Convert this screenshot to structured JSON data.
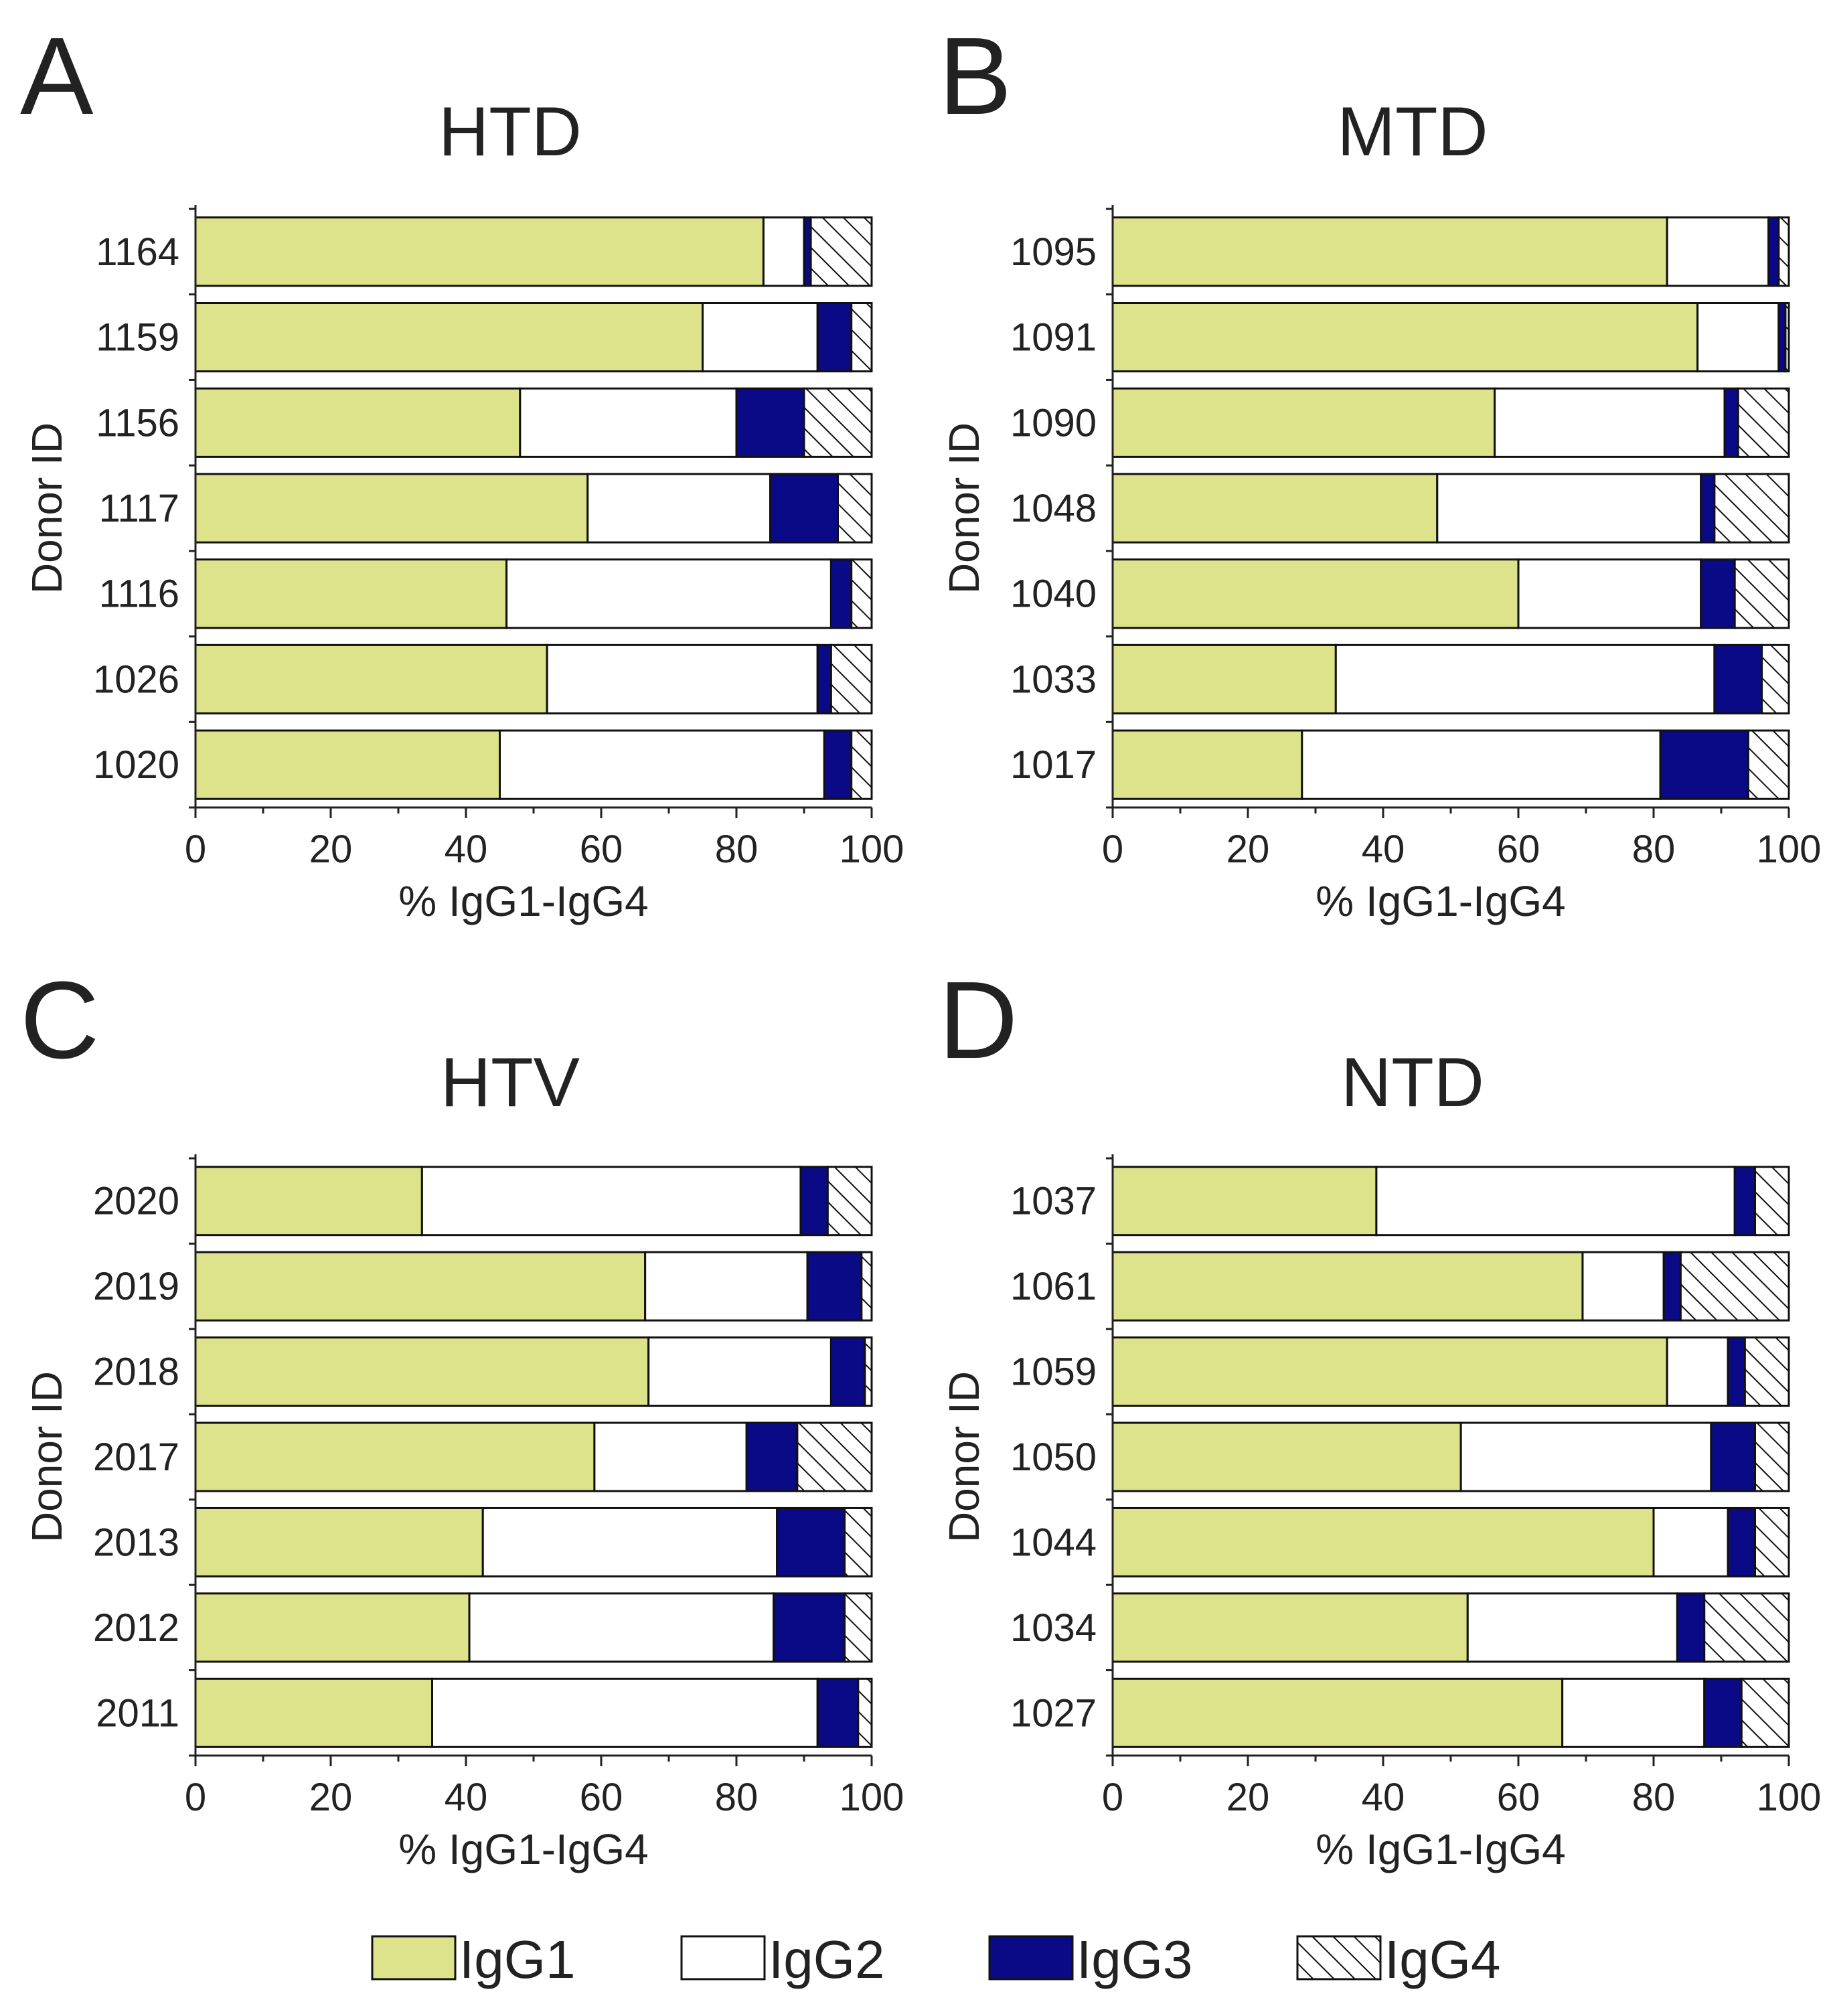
{
  "colors": {
    "IgG1": "#dde38a",
    "IgG2": "#ffffff",
    "IgG3": "#0a0a86",
    "IgG4": "hatch",
    "axis": "#222222"
  },
  "legend": {
    "items": [
      {
        "key": "IgG1",
        "label": "IgG1"
      },
      {
        "key": "IgG2",
        "label": "IgG2"
      },
      {
        "key": "IgG3",
        "label": "IgG3"
      },
      {
        "key": "IgG4",
        "label": "IgG4"
      }
    ]
  },
  "chart_data": [
    {
      "type": "bar",
      "stacked": true,
      "orientation": "horizontal",
      "panel_letter": "A",
      "title": "HTD",
      "xlabel": "% IgG1-IgG4",
      "ylabel": "Donor ID",
      "xlim": [
        0,
        100
      ],
      "xticks": [
        "0",
        "20",
        "40",
        "60",
        "80",
        "100"
      ],
      "categories": [
        "1164",
        "1159",
        "1156",
        "1117",
        "1116",
        "1026",
        "1020"
      ],
      "series": [
        {
          "name": "IgG1",
          "values": [
            84,
            75,
            48,
            58,
            46,
            52,
            45
          ]
        },
        {
          "name": "IgG2",
          "values": [
            6,
            17,
            32,
            27,
            48,
            40,
            48
          ]
        },
        {
          "name": "IgG3",
          "values": [
            1,
            5,
            10,
            10,
            3,
            2,
            4
          ]
        },
        {
          "name": "IgG4",
          "values": [
            9,
            3,
            10,
            5,
            3,
            6,
            3
          ]
        }
      ]
    },
    {
      "type": "bar",
      "stacked": true,
      "orientation": "horizontal",
      "panel_letter": "B",
      "title": "MTD",
      "xlabel": "% IgG1-IgG4",
      "ylabel": "Donor ID",
      "xlim": [
        0,
        100
      ],
      "xticks": [
        "0",
        "20",
        "40",
        "60",
        "80",
        "100"
      ],
      "categories": [
        "1095",
        "1091",
        "1090",
        "1048",
        "1040",
        "1033",
        "1017"
      ],
      "series": [
        {
          "name": "IgG1",
          "values": [
            82,
            86.5,
            56.5,
            48,
            60,
            33,
            28
          ]
        },
        {
          "name": "IgG2",
          "values": [
            15,
            12,
            34,
            39,
            27,
            56,
            53
          ]
        },
        {
          "name": "IgG3",
          "values": [
            1.5,
            1,
            2,
            2,
            5,
            7,
            13
          ]
        },
        {
          "name": "IgG4",
          "values": [
            1.5,
            0.5,
            7.5,
            11,
            8,
            4,
            6
          ]
        }
      ]
    },
    {
      "type": "bar",
      "stacked": true,
      "orientation": "horizontal",
      "panel_letter": "C",
      "title": "HTV",
      "xlabel": "% IgG1-IgG4",
      "ylabel": "Donor ID",
      "xlim": [
        0,
        100
      ],
      "xticks": [
        "0",
        "20",
        "40",
        "60",
        "80",
        "100"
      ],
      "categories": [
        "2020",
        "2019",
        "2018",
        "2017",
        "2013",
        "2012",
        "2011"
      ],
      "series": [
        {
          "name": "IgG1",
          "values": [
            33.5,
            66.5,
            67,
            59,
            42.5,
            40.5,
            35
          ]
        },
        {
          "name": "IgG2",
          "values": [
            56,
            24,
            27,
            22.5,
            43.5,
            45,
            57
          ]
        },
        {
          "name": "IgG3",
          "values": [
            4,
            8,
            5,
            7.5,
            10,
            10.5,
            6
          ]
        },
        {
          "name": "IgG4",
          "values": [
            6.5,
            1.5,
            1,
            11,
            4,
            4,
            2
          ]
        }
      ]
    },
    {
      "type": "bar",
      "stacked": true,
      "orientation": "horizontal",
      "panel_letter": "D",
      "title": "NTD",
      "xlabel": "% IgG1-IgG4",
      "ylabel": "Donor ID",
      "xlim": [
        0,
        100
      ],
      "xticks": [
        "0",
        "20",
        "40",
        "60",
        "80",
        "100"
      ],
      "categories": [
        "1037",
        "1061",
        "1059",
        "1050",
        "1044",
        "1034",
        "1027"
      ],
      "series": [
        {
          "name": "IgG1",
          "values": [
            39,
            69.5,
            82,
            51.5,
            80,
            52.5,
            66.5
          ]
        },
        {
          "name": "IgG2",
          "values": [
            53,
            12,
            9,
            37,
            11,
            31,
            21
          ]
        },
        {
          "name": "IgG3",
          "values": [
            3,
            2.5,
            2.5,
            6.5,
            4,
            4,
            5.5
          ]
        },
        {
          "name": "IgG4",
          "values": [
            5,
            16,
            6.5,
            5,
            5,
            12.5,
            7
          ]
        }
      ]
    }
  ]
}
